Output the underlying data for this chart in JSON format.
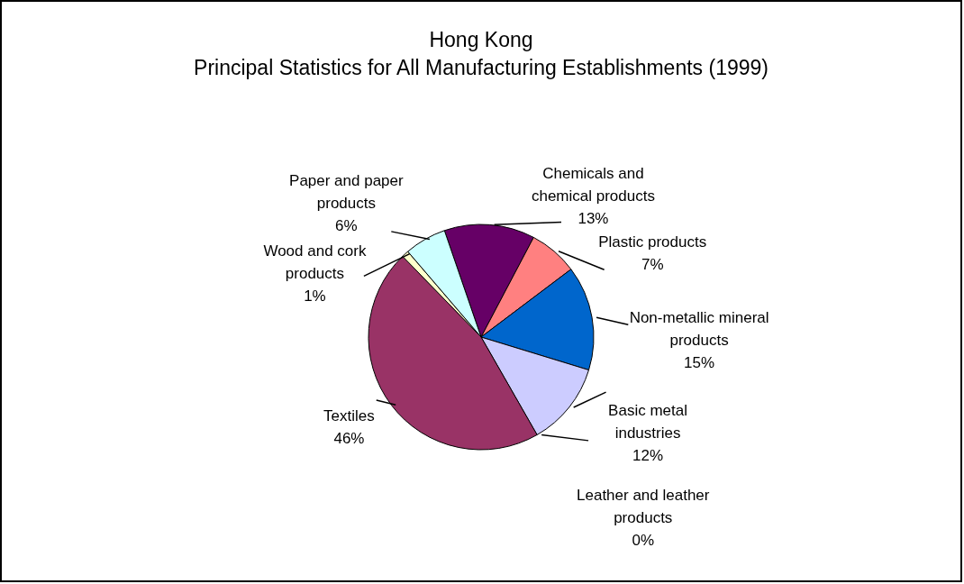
{
  "chart_data": {
    "type": "pie",
    "title": "Hong Kong",
    "subtitle": "Principal Statistics for All Manufacturing Establishments (1999)",
    "categories": [
      "Chemicals and chemical products",
      "Plastic products",
      "Non-metallic mineral products",
      "Basic metal industries",
      "Leather and leather products",
      "Textiles",
      "Wood and cork products",
      "Paper and paper products"
    ],
    "values": [
      13,
      7,
      15,
      12,
      0,
      46,
      1,
      6
    ],
    "colors": [
      "#660066",
      "#ff8080",
      "#0066cc",
      "#ccccff",
      "#000080",
      "#993366",
      "#ffffcc",
      "#ccffff"
    ],
    "value_labels": [
      "13%",
      "7%",
      "15%",
      "12%",
      "0%",
      "46%",
      "1%",
      "6%"
    ],
    "legend": false
  }
}
